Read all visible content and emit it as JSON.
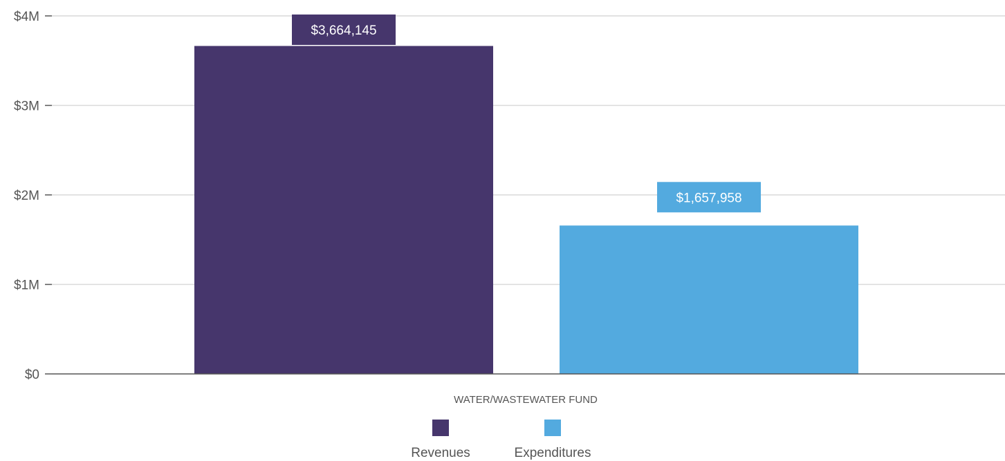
{
  "chart_data": {
    "type": "bar",
    "categories": [
      "WATER/WASTEWATER FUND"
    ],
    "series": [
      {
        "name": "Revenues",
        "values": [
          3664145
        ],
        "data_label": "$3,664,145",
        "color": "#46366c"
      },
      {
        "name": "Expenditures",
        "values": [
          1657958
        ],
        "data_label": "$1,657,958",
        "color": "#53aadf"
      }
    ],
    "title": "",
    "xlabel": "",
    "ylabel": "",
    "ylim": [
      0,
      4000000
    ],
    "yticks": [
      {
        "value": 0,
        "label": "$0"
      },
      {
        "value": 1000000,
        "label": "$1M"
      },
      {
        "value": 2000000,
        "label": "$2M"
      },
      {
        "value": 3000000,
        "label": "$3M"
      },
      {
        "value": 4000000,
        "label": "$4M"
      }
    ],
    "grid": true,
    "legend_position": "bottom",
    "colors": {
      "grid": "#d9d9d9",
      "axis": "#555555",
      "text": "#555555"
    }
  }
}
